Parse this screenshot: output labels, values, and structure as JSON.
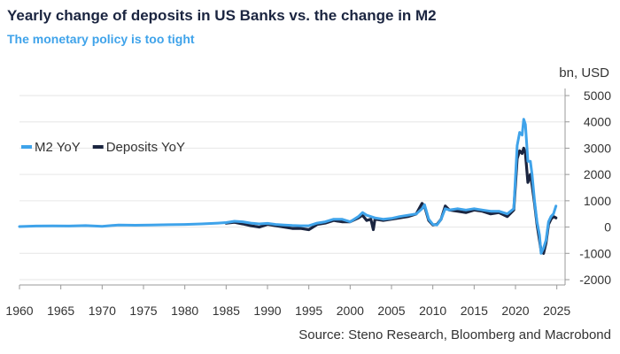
{
  "title": "Yearly change of deposits in US Banks vs. the change in M2",
  "subtitle": "The monetary policy is too tight",
  "source": "Source: Steno Research, Bloomberg and Macrobond",
  "chart_data": {
    "type": "line",
    "title": "Yearly change of deposits in US Banks vs. the change in M2",
    "subtitle": "The monetary policy is too tight",
    "ylabel": "bn, USD",
    "xlabel": "",
    "xlim": [
      1960,
      2026
    ],
    "ylim": [
      -2000,
      5000
    ],
    "x_ticks": [
      1960,
      1965,
      1970,
      1975,
      1980,
      1985,
      1990,
      1995,
      2000,
      2005,
      2010,
      2015,
      2020,
      2025
    ],
    "y_ticks": [
      -2000,
      -1000,
      0,
      1000,
      2000,
      3000,
      4000,
      5000
    ],
    "y_axis_side": "right",
    "grid": "horizontal",
    "legend": "upper-left",
    "colors": {
      "M2 YoY": "#3fa3ea",
      "Deposits YoY": "#1b2540"
    },
    "series": [
      {
        "name": "M2 YoY",
        "x": [
          1960,
          1962,
          1964,
          1966,
          1968,
          1970,
          1972,
          1974,
          1976,
          1978,
          1980,
          1982,
          1984,
          1985,
          1986,
          1987,
          1988,
          1989,
          1990,
          1991,
          1992,
          1993,
          1994,
          1995,
          1996,
          1997,
          1998,
          1999,
          2000,
          2001,
          2001.5,
          2002,
          2002.5,
          2003,
          2004,
          2005,
          2006,
          2007,
          2008,
          2008.7,
          2009,
          2009.5,
          2010,
          2010.5,
          2011,
          2011.5,
          2012,
          2013,
          2014,
          2015,
          2016,
          2017,
          2018,
          2019,
          2019.8,
          2020.2,
          2020.5,
          2020.8,
          2021.0,
          2021.2,
          2021.5,
          2021.8,
          2022.0,
          2022.3,
          2022.6,
          2022.9,
          2023.1,
          2023.4,
          2023.7,
          2024.0,
          2024.3,
          2024.6,
          2024.9
        ],
        "values": [
          20,
          40,
          45,
          40,
          55,
          30,
          80,
          70,
          80,
          90,
          100,
          120,
          150,
          170,
          220,
          200,
          150,
          120,
          140,
          100,
          80,
          60,
          50,
          50,
          150,
          200,
          300,
          300,
          200,
          400,
          550,
          450,
          400,
          350,
          300,
          330,
          400,
          450,
          500,
          700,
          850,
          300,
          100,
          80,
          300,
          700,
          650,
          700,
          650,
          700,
          650,
          600,
          600,
          500,
          700,
          3100,
          3600,
          3500,
          4100,
          3900,
          2500,
          2500,
          2000,
          1000,
          200,
          -300,
          -1000,
          -800,
          -500,
          200,
          400,
          500,
          800
        ]
      },
      {
        "name": "Deposits YoY",
        "x": [
          1985,
          1986,
          1987,
          1988,
          1989,
          1990,
          1991,
          1992,
          1993,
          1994,
          1995,
          1996,
          1997,
          1998,
          1999,
          2000,
          2001,
          2001.5,
          2002,
          2002.5,
          2002.8,
          2003,
          2004,
          2005,
          2006,
          2007,
          2008,
          2008.7,
          2009,
          2009.5,
          2010,
          2010.5,
          2011,
          2011.5,
          2012,
          2013,
          2014,
          2015,
          2016,
          2017,
          2018,
          2019,
          2019.8,
          2020.2,
          2020.5,
          2020.8,
          2021.0,
          2021.2,
          2021.5,
          2021.8,
          2022.0,
          2022.3,
          2022.6,
          2022.9,
          2023.1,
          2023.4,
          2023.7,
          2024.0,
          2024.3,
          2024.6,
          2024.9
        ],
        "values": [
          150,
          180,
          120,
          50,
          0,
          100,
          50,
          0,
          -50,
          -50,
          -100,
          100,
          150,
          250,
          200,
          200,
          350,
          450,
          250,
          300,
          -100,
          300,
          250,
          300,
          350,
          400,
          500,
          900,
          800,
          250,
          80,
          100,
          300,
          800,
          650,
          600,
          550,
          650,
          600,
          500,
          550,
          400,
          650,
          2600,
          2900,
          2800,
          3000,
          2800,
          1700,
          2000,
          1600,
          900,
          100,
          -500,
          -900,
          -1000,
          -600,
          100,
          300,
          400,
          350
        ]
      }
    ]
  }
}
